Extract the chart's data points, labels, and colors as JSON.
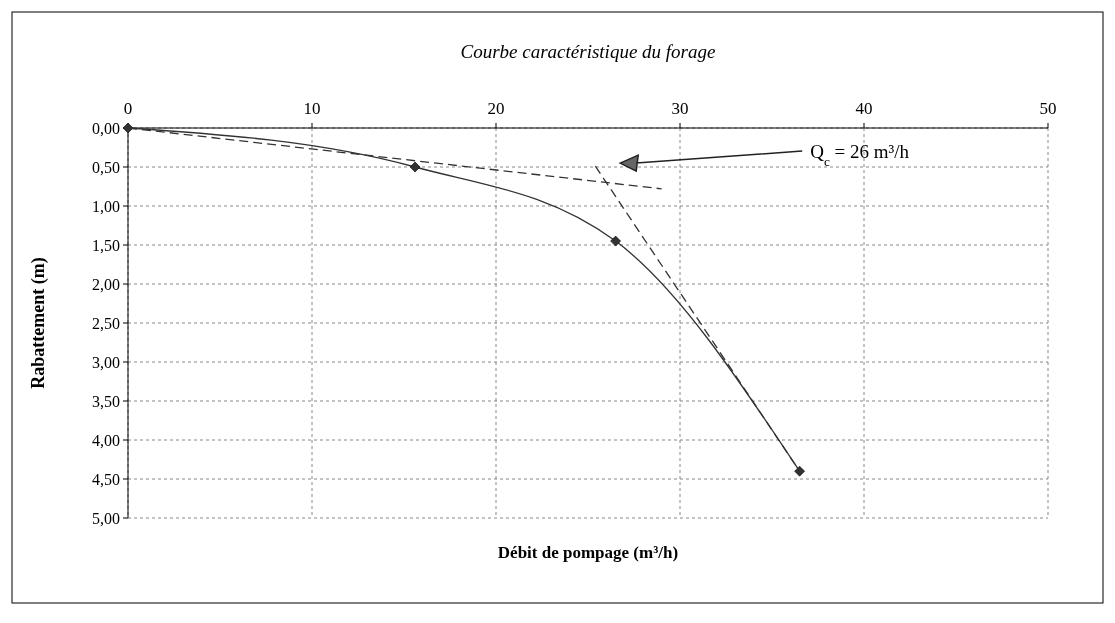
{
  "chart_data": {
    "type": "line",
    "title": "Courbe caractéristique du forage",
    "xlabel": "Débit de pompage (m³/h)",
    "ylabel": "Rabattement (m)",
    "xlim": [
      0,
      50
    ],
    "xticks": [
      0,
      10,
      20,
      30,
      40,
      50
    ],
    "ylim": [
      5,
      0
    ],
    "yticks": [
      {
        "value": 0,
        "label": "0,00"
      },
      {
        "value": 0.5,
        "label": "0,50"
      },
      {
        "value": 1,
        "label": "1,00"
      },
      {
        "value": 1.5,
        "label": "1,50"
      },
      {
        "value": 2,
        "label": "2,00"
      },
      {
        "value": 2.5,
        "label": "2,50"
      },
      {
        "value": 3,
        "label": "3,00"
      },
      {
        "value": 3.5,
        "label": "3,50"
      },
      {
        "value": 4,
        "label": "4,00"
      },
      {
        "value": 4.5,
        "label": "4,50"
      },
      {
        "value": 5,
        "label": "5,00"
      }
    ],
    "grid": true,
    "series": [
      {
        "color": "#333333",
        "x": [
          0,
          15.6,
          26.5,
          36.5
        ],
        "values": [
          0,
          0.5,
          1.45,
          4.4
        ],
        "marker": "diamond",
        "line_style": "solid"
      },
      {
        "color": "#333333",
        "x": [
          0,
          29
        ],
        "values": [
          0,
          0.78
        ],
        "marker": "none",
        "line_style": "dashed"
      },
      {
        "color": "#333333",
        "x": [
          25.4,
          36.5
        ],
        "values": [
          0.49,
          4.4
        ],
        "marker": "none",
        "line_style": "dashed"
      }
    ],
    "annotations": [
      "Q$_{c}$ = 26 m³/h"
    ]
  }
}
